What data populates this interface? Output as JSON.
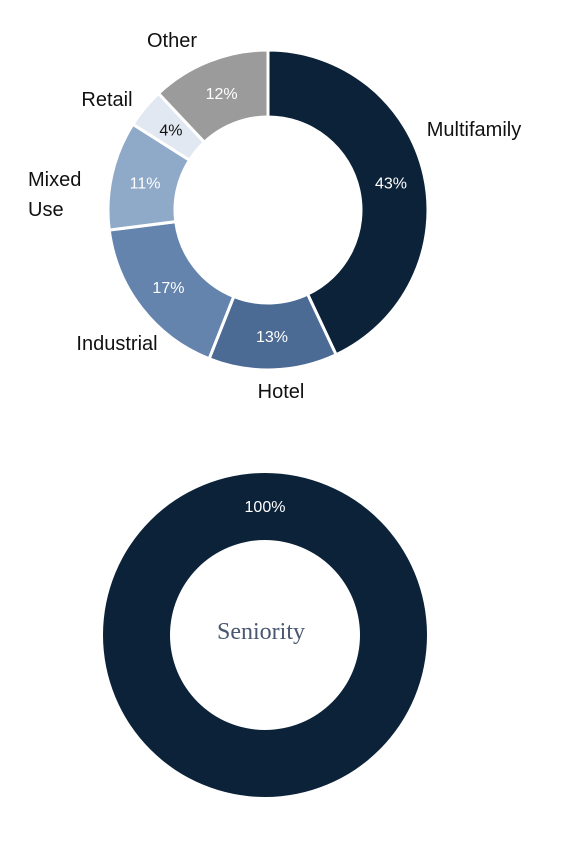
{
  "chart_data": [
    {
      "type": "pie",
      "categories": [
        "Multifamily",
        "Hotel",
        "Industrial",
        "Mixed Use",
        "Retail",
        "Other"
      ],
      "values": [
        43,
        13,
        17,
        11,
        4,
        12
      ],
      "value_labels": [
        "43%",
        "13%",
        "17%",
        "11%",
        "4%",
        "12%"
      ],
      "colors": [
        "#0b2239",
        "#4b6a94",
        "#6484ad",
        "#8fa9c8",
        "#e2e8f1",
        "#9b9b9b"
      ],
      "value_label_colors": [
        "#ffffff",
        "#ffffff",
        "#ffffff",
        "#ffffff",
        "#111111",
        "#ffffff"
      ],
      "style": "donut",
      "title": ""
    },
    {
      "type": "pie",
      "categories": [
        "Senior"
      ],
      "values": [
        100
      ],
      "value_labels": [
        "100%"
      ],
      "colors": [
        "#0b2239"
      ],
      "value_label_colors": [
        "#ffffff"
      ],
      "style": "donut",
      "center_label": "Seniority"
    }
  ]
}
